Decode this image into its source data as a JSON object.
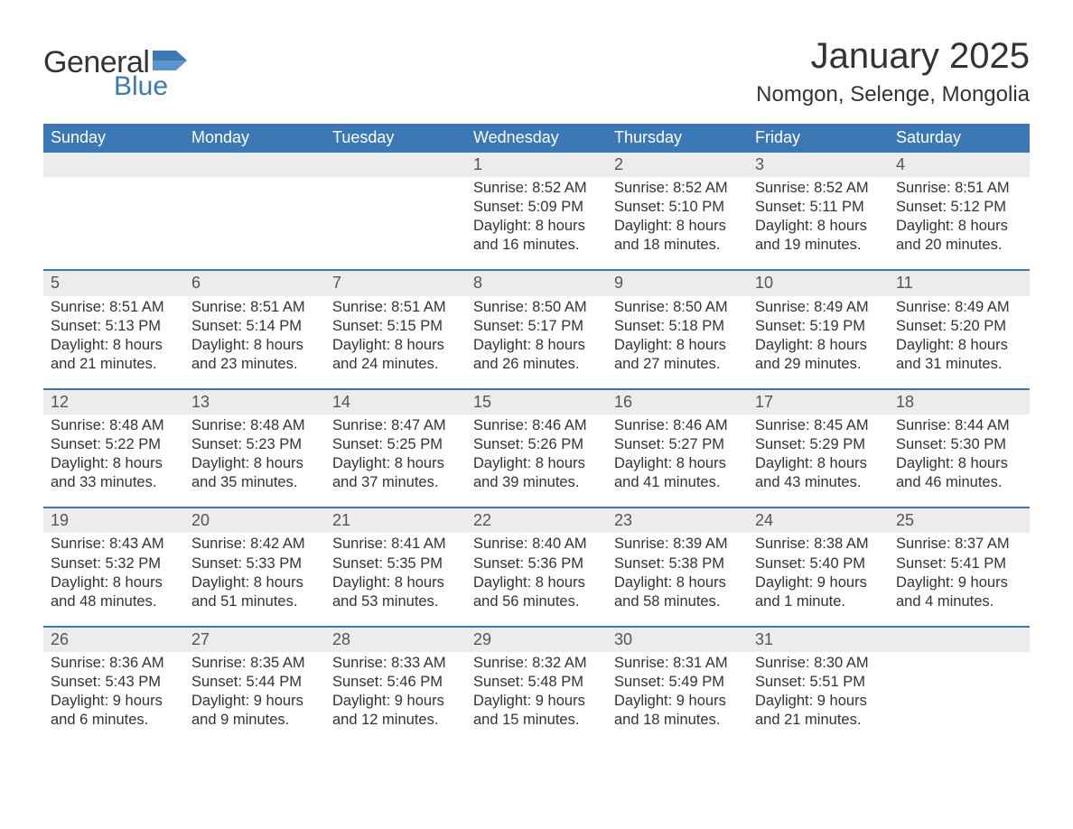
{
  "logo": {
    "general": "General",
    "blue": "Blue",
    "flag_color": "#3b78b5"
  },
  "title": "January 2025",
  "location": "Nomgon, Selenge, Mongolia",
  "colors": {
    "header_bg": "#3b78b5",
    "header_text": "#ffffff",
    "daynum_bg": "#ececec",
    "text": "#333333",
    "page_bg": "#ffffff"
  },
  "typography": {
    "title_fontsize": 40,
    "location_fontsize": 24,
    "dow_fontsize": 18,
    "body_fontsize": 16.5
  },
  "days_of_week": [
    "Sunday",
    "Monday",
    "Tuesday",
    "Wednesday",
    "Thursday",
    "Friday",
    "Saturday"
  ],
  "weeks": [
    [
      null,
      null,
      null,
      {
        "n": "1",
        "sunrise": "Sunrise: 8:52 AM",
        "sunset": "Sunset: 5:09 PM",
        "dl1": "Daylight: 8 hours",
        "dl2": "and 16 minutes."
      },
      {
        "n": "2",
        "sunrise": "Sunrise: 8:52 AM",
        "sunset": "Sunset: 5:10 PM",
        "dl1": "Daylight: 8 hours",
        "dl2": "and 18 minutes."
      },
      {
        "n": "3",
        "sunrise": "Sunrise: 8:52 AM",
        "sunset": "Sunset: 5:11 PM",
        "dl1": "Daylight: 8 hours",
        "dl2": "and 19 minutes."
      },
      {
        "n": "4",
        "sunrise": "Sunrise: 8:51 AM",
        "sunset": "Sunset: 5:12 PM",
        "dl1": "Daylight: 8 hours",
        "dl2": "and 20 minutes."
      }
    ],
    [
      {
        "n": "5",
        "sunrise": "Sunrise: 8:51 AM",
        "sunset": "Sunset: 5:13 PM",
        "dl1": "Daylight: 8 hours",
        "dl2": "and 21 minutes."
      },
      {
        "n": "6",
        "sunrise": "Sunrise: 8:51 AM",
        "sunset": "Sunset: 5:14 PM",
        "dl1": "Daylight: 8 hours",
        "dl2": "and 23 minutes."
      },
      {
        "n": "7",
        "sunrise": "Sunrise: 8:51 AM",
        "sunset": "Sunset: 5:15 PM",
        "dl1": "Daylight: 8 hours",
        "dl2": "and 24 minutes."
      },
      {
        "n": "8",
        "sunrise": "Sunrise: 8:50 AM",
        "sunset": "Sunset: 5:17 PM",
        "dl1": "Daylight: 8 hours",
        "dl2": "and 26 minutes."
      },
      {
        "n": "9",
        "sunrise": "Sunrise: 8:50 AM",
        "sunset": "Sunset: 5:18 PM",
        "dl1": "Daylight: 8 hours",
        "dl2": "and 27 minutes."
      },
      {
        "n": "10",
        "sunrise": "Sunrise: 8:49 AM",
        "sunset": "Sunset: 5:19 PM",
        "dl1": "Daylight: 8 hours",
        "dl2": "and 29 minutes."
      },
      {
        "n": "11",
        "sunrise": "Sunrise: 8:49 AM",
        "sunset": "Sunset: 5:20 PM",
        "dl1": "Daylight: 8 hours",
        "dl2": "and 31 minutes."
      }
    ],
    [
      {
        "n": "12",
        "sunrise": "Sunrise: 8:48 AM",
        "sunset": "Sunset: 5:22 PM",
        "dl1": "Daylight: 8 hours",
        "dl2": "and 33 minutes."
      },
      {
        "n": "13",
        "sunrise": "Sunrise: 8:48 AM",
        "sunset": "Sunset: 5:23 PM",
        "dl1": "Daylight: 8 hours",
        "dl2": "and 35 minutes."
      },
      {
        "n": "14",
        "sunrise": "Sunrise: 8:47 AM",
        "sunset": "Sunset: 5:25 PM",
        "dl1": "Daylight: 8 hours",
        "dl2": "and 37 minutes."
      },
      {
        "n": "15",
        "sunrise": "Sunrise: 8:46 AM",
        "sunset": "Sunset: 5:26 PM",
        "dl1": "Daylight: 8 hours",
        "dl2": "and 39 minutes."
      },
      {
        "n": "16",
        "sunrise": "Sunrise: 8:46 AM",
        "sunset": "Sunset: 5:27 PM",
        "dl1": "Daylight: 8 hours",
        "dl2": "and 41 minutes."
      },
      {
        "n": "17",
        "sunrise": "Sunrise: 8:45 AM",
        "sunset": "Sunset: 5:29 PM",
        "dl1": "Daylight: 8 hours",
        "dl2": "and 43 minutes."
      },
      {
        "n": "18",
        "sunrise": "Sunrise: 8:44 AM",
        "sunset": "Sunset: 5:30 PM",
        "dl1": "Daylight: 8 hours",
        "dl2": "and 46 minutes."
      }
    ],
    [
      {
        "n": "19",
        "sunrise": "Sunrise: 8:43 AM",
        "sunset": "Sunset: 5:32 PM",
        "dl1": "Daylight: 8 hours",
        "dl2": "and 48 minutes."
      },
      {
        "n": "20",
        "sunrise": "Sunrise: 8:42 AM",
        "sunset": "Sunset: 5:33 PM",
        "dl1": "Daylight: 8 hours",
        "dl2": "and 51 minutes."
      },
      {
        "n": "21",
        "sunrise": "Sunrise: 8:41 AM",
        "sunset": "Sunset: 5:35 PM",
        "dl1": "Daylight: 8 hours",
        "dl2": "and 53 minutes."
      },
      {
        "n": "22",
        "sunrise": "Sunrise: 8:40 AM",
        "sunset": "Sunset: 5:36 PM",
        "dl1": "Daylight: 8 hours",
        "dl2": "and 56 minutes."
      },
      {
        "n": "23",
        "sunrise": "Sunrise: 8:39 AM",
        "sunset": "Sunset: 5:38 PM",
        "dl1": "Daylight: 8 hours",
        "dl2": "and 58 minutes."
      },
      {
        "n": "24",
        "sunrise": "Sunrise: 8:38 AM",
        "sunset": "Sunset: 5:40 PM",
        "dl1": "Daylight: 9 hours",
        "dl2": "and 1 minute."
      },
      {
        "n": "25",
        "sunrise": "Sunrise: 8:37 AM",
        "sunset": "Sunset: 5:41 PM",
        "dl1": "Daylight: 9 hours",
        "dl2": "and 4 minutes."
      }
    ],
    [
      {
        "n": "26",
        "sunrise": "Sunrise: 8:36 AM",
        "sunset": "Sunset: 5:43 PM",
        "dl1": "Daylight: 9 hours",
        "dl2": "and 6 minutes."
      },
      {
        "n": "27",
        "sunrise": "Sunrise: 8:35 AM",
        "sunset": "Sunset: 5:44 PM",
        "dl1": "Daylight: 9 hours",
        "dl2": "and 9 minutes."
      },
      {
        "n": "28",
        "sunrise": "Sunrise: 8:33 AM",
        "sunset": "Sunset: 5:46 PM",
        "dl1": "Daylight: 9 hours",
        "dl2": "and 12 minutes."
      },
      {
        "n": "29",
        "sunrise": "Sunrise: 8:32 AM",
        "sunset": "Sunset: 5:48 PM",
        "dl1": "Daylight: 9 hours",
        "dl2": "and 15 minutes."
      },
      {
        "n": "30",
        "sunrise": "Sunrise: 8:31 AM",
        "sunset": "Sunset: 5:49 PM",
        "dl1": "Daylight: 9 hours",
        "dl2": "and 18 minutes."
      },
      {
        "n": "31",
        "sunrise": "Sunrise: 8:30 AM",
        "sunset": "Sunset: 5:51 PM",
        "dl1": "Daylight: 9 hours",
        "dl2": "and 21 minutes."
      },
      null
    ]
  ]
}
